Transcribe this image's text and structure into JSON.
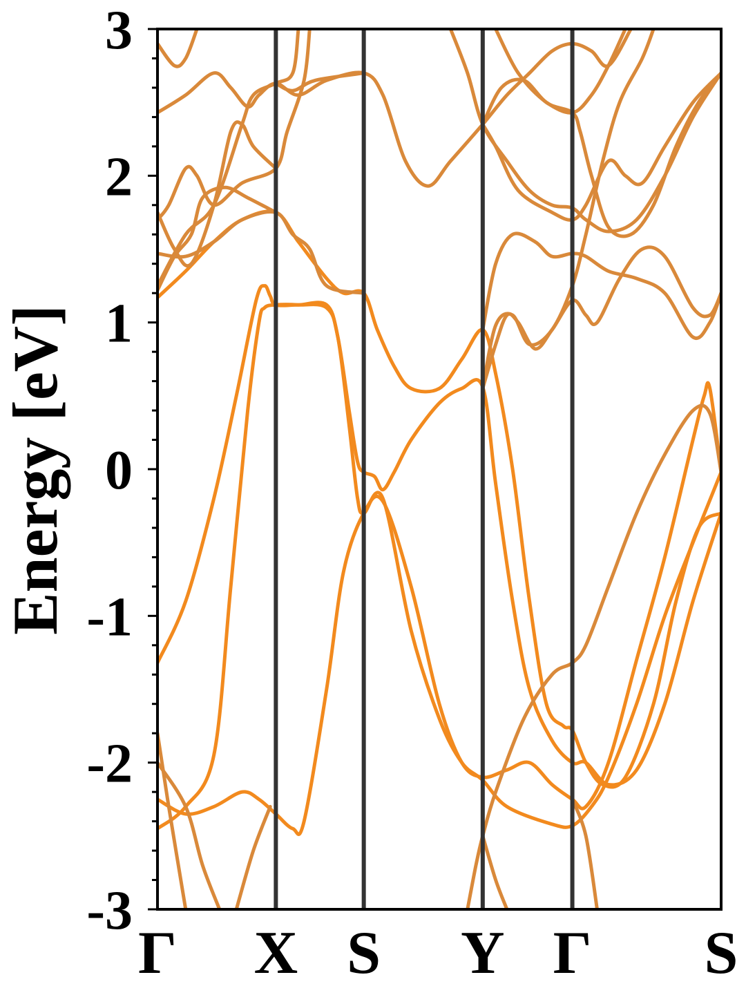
{
  "chart_data": {
    "type": "line",
    "ylabel": "Energy [eV]",
    "ylim": [
      -3,
      3
    ],
    "yticks": [
      "3",
      "2",
      "1",
      "0",
      "-1",
      "-2",
      "-3"
    ],
    "x_range": [
      0,
      1
    ],
    "kpath": [
      {
        "label": "Γ",
        "x": 0.0
      },
      {
        "label": "X",
        "x": 0.21
      },
      {
        "label": "S",
        "x": 0.366
      },
      {
        "label": "Y",
        "x": 0.577
      },
      {
        "label": "Γ",
        "x": 0.736
      },
      {
        "label": "S",
        "x": 1.0
      }
    ],
    "grid": false,
    "colors": {
      "band": "#d9893a",
      "band_highlight": "#f28a1e",
      "kline": "#333333"
    },
    "series": [
      {
        "points": [
          [
            0.0,
            -1.32
          ],
          [
            0.05,
            -0.9
          ],
          [
            0.1,
            -0.2
          ],
          [
            0.14,
            0.5
          ],
          [
            0.175,
            1.15
          ],
          [
            0.19,
            1.25
          ],
          [
            0.2,
            1.18
          ],
          [
            0.21,
            1.12
          ],
          [
            0.25,
            1.12
          ],
          [
            0.3,
            1.12
          ],
          [
            0.32,
            0.9
          ],
          [
            0.34,
            0.4
          ],
          [
            0.355,
            0.05
          ],
          [
            0.366,
            -0.02
          ],
          [
            0.385,
            -0.05
          ],
          [
            0.4,
            -0.14
          ],
          [
            0.42,
            -0.02
          ],
          [
            0.45,
            0.2
          ],
          [
            0.5,
            0.45
          ],
          [
            0.54,
            0.55
          ],
          [
            0.577,
            0.56
          ],
          [
            0.6,
            -0.1
          ],
          [
            0.63,
            -0.9
          ],
          [
            0.66,
            -1.5
          ],
          [
            0.7,
            -1.85
          ],
          [
            0.736,
            -2.0
          ],
          [
            0.76,
            -2.0
          ],
          [
            0.8,
            -2.15
          ],
          [
            0.85,
            -2.05
          ],
          [
            0.9,
            -1.6
          ],
          [
            0.95,
            -0.9
          ],
          [
            1.0,
            -0.3
          ]
        ]
      },
      {
        "points": [
          [
            0.0,
            1.17
          ],
          [
            0.05,
            1.35
          ],
          [
            0.1,
            1.55
          ],
          [
            0.15,
            1.7
          ],
          [
            0.21,
            1.75
          ],
          [
            0.25,
            1.55
          ],
          [
            0.3,
            1.3
          ],
          [
            0.33,
            1.2
          ],
          [
            0.366,
            1.2
          ],
          [
            0.39,
            0.95
          ],
          [
            0.42,
            0.7
          ],
          [
            0.45,
            0.55
          ],
          [
            0.5,
            0.55
          ],
          [
            0.54,
            0.75
          ],
          [
            0.577,
            0.95
          ],
          [
            0.6,
            0.65
          ],
          [
            0.63,
            0.0
          ],
          [
            0.66,
            -0.9
          ],
          [
            0.69,
            -1.6
          ],
          [
            0.72,
            -1.75
          ],
          [
            0.736,
            -1.78
          ],
          [
            0.76,
            -2.0
          ],
          [
            0.79,
            -2.15
          ],
          [
            0.83,
            -2.1
          ],
          [
            0.88,
            -1.6
          ],
          [
            0.92,
            -0.9
          ],
          [
            0.96,
            -0.4
          ],
          [
            1.0,
            -0.3
          ]
        ]
      },
      {
        "points": [
          [
            0.0,
            -2.45
          ],
          [
            0.05,
            -2.3
          ],
          [
            0.1,
            -1.95
          ],
          [
            0.13,
            -0.8
          ],
          [
            0.16,
            0.4
          ],
          [
            0.18,
            1.0
          ],
          [
            0.19,
            1.1
          ],
          [
            0.21,
            1.12
          ],
          [
            0.25,
            1.12
          ],
          [
            0.3,
            1.1
          ],
          [
            0.32,
            0.9
          ],
          [
            0.34,
            0.3
          ],
          [
            0.355,
            -0.2
          ],
          [
            0.366,
            -0.3
          ],
          [
            0.4,
            -0.2
          ],
          [
            0.45,
            -1.1
          ],
          [
            0.5,
            -1.7
          ],
          [
            0.54,
            -2.0
          ],
          [
            0.577,
            -2.12
          ],
          [
            0.62,
            -2.3
          ],
          [
            0.7,
            -2.42
          ],
          [
            0.736,
            -2.43
          ],
          [
            0.77,
            -2.3
          ],
          [
            0.8,
            -2.1
          ],
          [
            0.85,
            -1.6
          ],
          [
            0.9,
            -1.0
          ],
          [
            0.95,
            -0.5
          ],
          [
            1.0,
            -0.02
          ]
        ]
      },
      {
        "points": [
          [
            0.0,
            -2.25
          ],
          [
            0.05,
            -2.35
          ],
          [
            0.1,
            -2.3
          ],
          [
            0.15,
            -2.2
          ],
          [
            0.18,
            -2.25
          ],
          [
            0.21,
            -2.35
          ],
          [
            0.24,
            -2.45
          ],
          [
            0.26,
            -2.4
          ],
          [
            0.3,
            -1.5
          ],
          [
            0.33,
            -0.7
          ],
          [
            0.366,
            -0.3
          ],
          [
            0.4,
            -0.22
          ],
          [
            0.45,
            -0.8
          ],
          [
            0.5,
            -1.6
          ],
          [
            0.54,
            -2.0
          ],
          [
            0.577,
            -2.1
          ],
          [
            0.62,
            -2.05
          ],
          [
            0.66,
            -2.0
          ],
          [
            0.7,
            -2.15
          ],
          [
            0.736,
            -2.25
          ],
          [
            0.76,
            -2.3
          ],
          [
            0.8,
            -2.0
          ],
          [
            0.85,
            -1.3
          ],
          [
            0.9,
            -0.6
          ],
          [
            0.95,
            0.2
          ],
          [
            0.97,
            0.5
          ],
          [
            0.98,
            0.55
          ],
          [
            1.0,
            -0.02
          ]
        ]
      },
      {
        "points": [
          [
            0.0,
            -1.8
          ],
          [
            0.02,
            -2.3
          ],
          [
            0.05,
            -3.0
          ]
        ]
      },
      {
        "points": [
          [
            0.0,
            -2.0
          ],
          [
            0.05,
            -2.3
          ],
          [
            0.08,
            -2.7
          ],
          [
            0.11,
            -3.0
          ]
        ]
      },
      {
        "points": [
          [
            0.2,
            -2.3
          ],
          [
            0.17,
            -2.6
          ],
          [
            0.14,
            -3.0
          ]
        ]
      },
      {
        "points": [
          [
            0.55,
            -3.0
          ],
          [
            0.565,
            -2.7
          ],
          [
            0.577,
            -2.5
          ],
          [
            0.6,
            -2.2
          ],
          [
            0.65,
            -1.7
          ],
          [
            0.7,
            -1.4
          ],
          [
            0.736,
            -1.32
          ],
          [
            0.76,
            -1.2
          ],
          [
            0.8,
            -0.8
          ],
          [
            0.85,
            -0.3
          ],
          [
            0.9,
            0.1
          ],
          [
            0.95,
            0.4
          ],
          [
            0.98,
            0.38
          ],
          [
            1.0,
            -0.02
          ]
        ]
      },
      {
        "points": [
          [
            0.577,
            -2.5
          ],
          [
            0.6,
            -2.8
          ],
          [
            0.62,
            -3.0
          ]
        ]
      },
      {
        "points": [
          [
            0.736,
            -2.25
          ],
          [
            0.76,
            -2.5
          ],
          [
            0.78,
            -3.0
          ]
        ]
      },
      {
        "points": [
          [
            0.0,
            1.47
          ],
          [
            0.05,
            1.45
          ],
          [
            0.1,
            1.55
          ],
          [
            0.15,
            1.7
          ],
          [
            0.21,
            1.75
          ],
          [
            0.24,
            1.6
          ],
          [
            0.27,
            1.5
          ],
          [
            0.3,
            1.25
          ],
          [
            0.366,
            1.2
          ]
        ]
      },
      {
        "points": [
          [
            0.0,
            1.22
          ],
          [
            0.03,
            1.45
          ],
          [
            0.06,
            1.6
          ],
          [
            0.08,
            1.85
          ],
          [
            0.12,
            1.92
          ],
          [
            0.16,
            1.85
          ],
          [
            0.21,
            1.75
          ]
        ]
      },
      {
        "points": [
          [
            0.0,
            1.75
          ],
          [
            0.03,
            1.5
          ],
          [
            0.06,
            1.4
          ],
          [
            0.1,
            1.8
          ],
          [
            0.13,
            2.3
          ],
          [
            0.15,
            2.35
          ],
          [
            0.17,
            2.2
          ],
          [
            0.21,
            2.05
          ]
        ]
      },
      {
        "points": [
          [
            0.0,
            1.7
          ],
          [
            0.02,
            1.8
          ],
          [
            0.05,
            2.05
          ],
          [
            0.07,
            2.0
          ],
          [
            0.1,
            1.8
          ],
          [
            0.15,
            1.95
          ],
          [
            0.21,
            2.05
          ],
          [
            0.23,
            2.3
          ],
          [
            0.26,
            2.65
          ],
          [
            0.27,
            3.0
          ]
        ]
      },
      {
        "points": [
          [
            0.0,
            1.25
          ],
          [
            0.05,
            1.6
          ],
          [
            0.1,
            1.8
          ],
          [
            0.15,
            2.35
          ],
          [
            0.17,
            2.55
          ],
          [
            0.21,
            2.63
          ],
          [
            0.24,
            2.7
          ],
          [
            0.25,
            3.0
          ]
        ]
      },
      {
        "points": [
          [
            0.0,
            2.43
          ],
          [
            0.05,
            2.55
          ],
          [
            0.1,
            2.7
          ],
          [
            0.13,
            2.6
          ],
          [
            0.16,
            2.47
          ],
          [
            0.18,
            2.55
          ],
          [
            0.21,
            2.63
          ],
          [
            0.25,
            2.55
          ],
          [
            0.3,
            2.65
          ],
          [
            0.366,
            2.7
          ],
          [
            0.4,
            2.55
          ],
          [
            0.44,
            2.1
          ],
          [
            0.48,
            1.93
          ],
          [
            0.52,
            2.1
          ],
          [
            0.577,
            2.35
          ],
          [
            0.62,
            2.55
          ],
          [
            0.66,
            2.7
          ],
          [
            0.7,
            2.85
          ],
          [
            0.736,
            2.9
          ],
          [
            0.77,
            2.85
          ],
          [
            0.8,
            2.75
          ],
          [
            0.84,
            3.0
          ]
        ]
      },
      {
        "points": [
          [
            0.0,
            2.9
          ],
          [
            0.03,
            2.75
          ],
          [
            0.05,
            2.8
          ],
          [
            0.07,
            3.0
          ]
        ]
      },
      {
        "points": [
          [
            0.21,
            2.63
          ],
          [
            0.24,
            2.58
          ],
          [
            0.28,
            2.65
          ],
          [
            0.366,
            2.7
          ]
        ]
      },
      {
        "points": [
          [
            0.52,
            3.0
          ],
          [
            0.55,
            2.7
          ],
          [
            0.577,
            2.35
          ],
          [
            0.62,
            2.1
          ],
          [
            0.66,
            1.9
          ],
          [
            0.7,
            1.8
          ],
          [
            0.736,
            1.78
          ],
          [
            0.76,
            1.7
          ],
          [
            0.8,
            1.62
          ],
          [
            0.85,
            1.7
          ],
          [
            0.9,
            2.0
          ],
          [
            0.95,
            2.4
          ],
          [
            1.0,
            2.7
          ]
        ]
      },
      {
        "points": [
          [
            0.577,
            2.35
          ],
          [
            0.6,
            2.2
          ],
          [
            0.64,
            1.9
          ],
          [
            0.7,
            1.75
          ],
          [
            0.736,
            1.7
          ],
          [
            0.76,
            1.8
          ],
          [
            0.8,
            2.1
          ],
          [
            0.83,
            2.0
          ],
          [
            0.86,
            1.95
          ],
          [
            0.9,
            2.2
          ],
          [
            0.95,
            2.5
          ],
          [
            1.0,
            2.7
          ]
        ]
      },
      {
        "points": [
          [
            0.577,
            2.35
          ],
          [
            0.61,
            2.6
          ],
          [
            0.65,
            2.65
          ],
          [
            0.69,
            2.5
          ],
          [
            0.736,
            2.43
          ],
          [
            0.77,
            2.55
          ],
          [
            0.8,
            2.75
          ],
          [
            0.83,
            3.0
          ]
        ]
      },
      {
        "points": [
          [
            0.577,
            0.95
          ],
          [
            0.6,
            1.4
          ],
          [
            0.63,
            1.6
          ],
          [
            0.67,
            1.55
          ],
          [
            0.7,
            1.45
          ],
          [
            0.736,
            1.47
          ],
          [
            0.76,
            1.45
          ],
          [
            0.8,
            1.35
          ],
          [
            0.85,
            1.3
          ],
          [
            0.9,
            1.2
          ],
          [
            0.95,
            0.9
          ],
          [
            0.98,
            1.0
          ],
          [
            1.0,
            1.2
          ]
        ]
      },
      {
        "points": [
          [
            0.577,
            0.55
          ],
          [
            0.6,
            0.85
          ],
          [
            0.62,
            1.05
          ],
          [
            0.64,
            1.0
          ],
          [
            0.67,
            0.82
          ],
          [
            0.7,
            0.95
          ],
          [
            0.736,
            1.15
          ],
          [
            0.76,
            1.05
          ],
          [
            0.78,
            1.0
          ],
          [
            0.82,
            1.3
          ],
          [
            0.86,
            1.5
          ],
          [
            0.9,
            1.45
          ],
          [
            0.95,
            1.1
          ],
          [
            0.98,
            1.05
          ],
          [
            1.0,
            1.2
          ]
        ]
      },
      {
        "points": [
          [
            0.577,
            0.55
          ],
          [
            0.6,
            0.98
          ],
          [
            0.63,
            1.05
          ],
          [
            0.66,
            0.85
          ],
          [
            0.7,
            0.95
          ],
          [
            0.736,
            1.25
          ],
          [
            0.76,
            1.6
          ],
          [
            0.79,
            2.1
          ],
          [
            0.82,
            2.5
          ],
          [
            0.86,
            2.8
          ],
          [
            0.88,
            3.0
          ]
        ]
      },
      {
        "points": [
          [
            0.6,
            3.0
          ],
          [
            0.64,
            2.7
          ],
          [
            0.69,
            2.5
          ],
          [
            0.736,
            2.43
          ],
          [
            0.75,
            2.3
          ],
          [
            0.77,
            2.0
          ],
          [
            0.8,
            1.65
          ],
          [
            0.84,
            1.6
          ],
          [
            0.88,
            1.8
          ],
          [
            0.92,
            2.2
          ],
          [
            0.96,
            2.5
          ],
          [
            1.0,
            2.7
          ]
        ]
      }
    ]
  }
}
